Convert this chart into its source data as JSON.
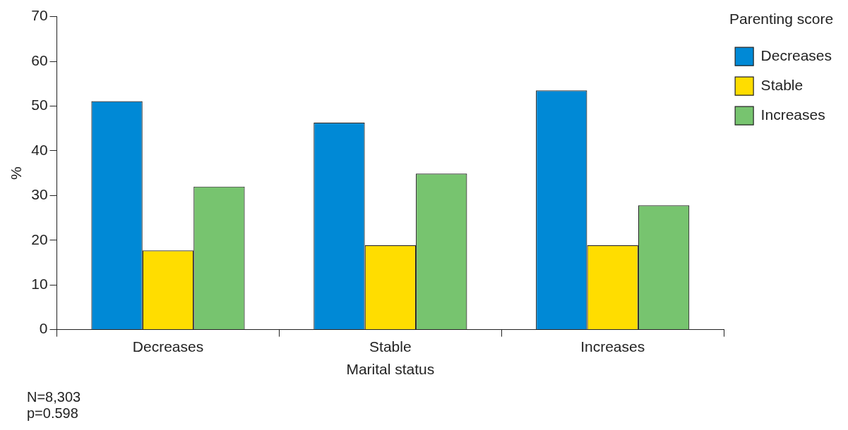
{
  "chart_data": {
    "type": "bar",
    "xlabel": "Marital status",
    "ylabel": "%",
    "legend_title": "Parenting score",
    "categories": [
      "Decreases",
      "Stable",
      "Increases"
    ],
    "series": [
      {
        "name": "Decreases",
        "color": "#0089d6",
        "values": [
          51.1,
          46.3,
          53.5
        ]
      },
      {
        "name": "Stable",
        "color": "#ffdd00",
        "values": [
          17.7,
          18.9,
          18.9
        ]
      },
      {
        "name": "Increases",
        "color": "#77c46f",
        "values": [
          32.0,
          34.9,
          27.8
        ]
      }
    ],
    "ylim": [
      0,
      70
    ],
    "yticks": [
      0,
      10,
      20,
      30,
      40,
      50,
      60,
      70
    ],
    "grid": false,
    "legend": "top right",
    "annotations": [
      "N=8,303",
      "p=0.598"
    ]
  }
}
